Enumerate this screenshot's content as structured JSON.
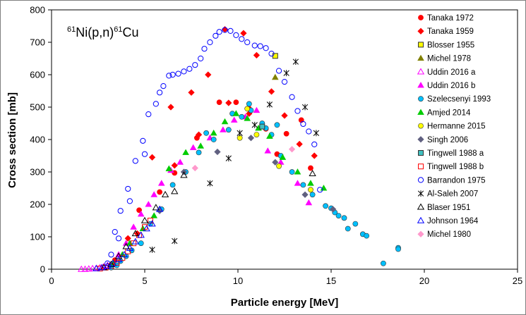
{
  "chart_data": {
    "type": "scatter",
    "title": "61Ni(p,n)61Cu",
    "title_parts": {
      "a1": "61",
      "e1": "Ni(p,n)",
      "a2": "61",
      "e2": "Cu"
    },
    "xlabel": "Particle energy [MeV]",
    "ylabel": "Cross section [mb]",
    "xlim": [
      0,
      25
    ],
    "ylim": [
      0,
      800
    ],
    "x_ticks": [
      0,
      5,
      10,
      15,
      20,
      25
    ],
    "y_ticks": [
      0,
      100,
      200,
      300,
      400,
      500,
      600,
      700,
      800
    ],
    "grid": false,
    "legend_position": "right",
    "series": [
      {
        "name": "Tanaka 1972",
        "marker": "circle",
        "color": "#ff0000",
        "filled": true,
        "x": [
          3.4,
          4.7,
          5.8,
          6.6,
          7.8,
          9.0,
          9.9,
          10.6,
          11.5,
          12.1,
          12.6,
          13.4,
          13.9
        ],
        "y": [
          28,
          182,
          238,
          297,
          405,
          515,
          515,
          495,
          433,
          355,
          418,
          460,
          312
        ]
      },
      {
        "name": "Tanaka 1959",
        "marker": "diamond",
        "color": "#ff0000",
        "filled": true,
        "x": [
          4.1,
          5.4,
          6.4,
          7.5,
          8.4,
          9.3,
          10.3,
          11.0,
          11.8,
          12.5,
          13.3,
          14.1,
          4.6,
          6.6,
          7.9,
          9.5,
          10.6
        ],
        "y": [
          95,
          345,
          500,
          545,
          600,
          740,
          728,
          660,
          548,
          474,
          386,
          350,
          110,
          320,
          415,
          513,
          480
        ]
      },
      {
        "name": "Blosser 1955",
        "marker": "square",
        "color": "#ffff00",
        "filled": true,
        "x": [
          12.0
        ],
        "y": [
          658
        ]
      },
      {
        "name": "Michel 1978",
        "marker": "triangle",
        "color": "#808000",
        "filled": true,
        "x": [
          12.0
        ],
        "y": [
          592
        ]
      },
      {
        "name": "Uddin 2016 a",
        "marker": "triangle",
        "color": "#ff00ff",
        "filled": false,
        "x": [
          1.6,
          1.8,
          2.0,
          2.2,
          2.4,
          2.6,
          2.8,
          3.0,
          3.3
        ],
        "y": [
          0,
          0,
          1,
          2,
          3,
          5,
          8,
          12,
          18
        ]
      },
      {
        "name": "Uddin 2016 b",
        "marker": "triangle",
        "color": "#ff00ff",
        "filled": true,
        "x": [
          3.6,
          4.0,
          4.4,
          4.8,
          5.2,
          5.5,
          5.9,
          6.4,
          6.9,
          7.6,
          8.5,
          9.2,
          9.8,
          10.4,
          11.0,
          11.6,
          12.3,
          13.2,
          13.8
        ],
        "y": [
          45,
          80,
          130,
          170,
          200,
          230,
          265,
          305,
          330,
          375,
          405,
          430,
          460,
          470,
          490,
          365,
          330,
          265,
          205
        ]
      },
      {
        "name": "Szelecsenyi 1993",
        "marker": "circle",
        "color": "#00c0ff",
        "filled": true,
        "x": [
          3.2,
          3.5,
          3.7,
          4.0,
          4.3,
          4.8,
          5.3,
          5.9,
          6.5,
          7.2,
          7.9,
          8.7,
          9.5,
          10.2,
          10.7,
          11.3,
          11.8,
          12.3,
          12.9,
          13.5,
          14.0,
          14.7,
          15.2,
          15.7,
          16.3,
          16.7,
          17.8,
          18.6,
          15.0,
          15.4,
          15.9,
          16.9,
          18.6,
          12.1,
          11.5,
          10.6,
          9.7,
          8.3
        ],
        "y": [
          5,
          12,
          25,
          40,
          58,
          80,
          140,
          185,
          260,
          300,
          360,
          400,
          430,
          470,
          490,
          450,
          415,
          350,
          300,
          260,
          230,
          195,
          175,
          158,
          140,
          108,
          18,
          66,
          188,
          165,
          125,
          103,
          62,
          445,
          435,
          510,
          480,
          420
        ]
      },
      {
        "name": "Amjed 2014",
        "marker": "triangle",
        "color": "#00cc00",
        "filled": true,
        "x": [
          3.3,
          3.8,
          4.2,
          4.9,
          5.5,
          6.3,
          7.2,
          8.0,
          8.7,
          9.3,
          9.9,
          10.5,
          11.1,
          11.7,
          12.4,
          13.2,
          13.9,
          14.6
        ],
        "y": [
          20,
          45,
          80,
          125,
          165,
          310,
          360,
          380,
          420,
          455,
          480,
          465,
          435,
          410,
          345,
          300,
          265,
          250
        ]
      },
      {
        "name": "Hermanne 2015",
        "marker": "circle",
        "color": "#ffff00",
        "filled": true,
        "x": [
          10.1,
          10.5,
          12.2,
          13.9,
          11.0
        ],
        "y": [
          405,
          495,
          318,
          245,
          415
        ]
      },
      {
        "name": "Singh 2006",
        "marker": "diamond",
        "color": "#606080",
        "filled": true,
        "x": [
          5.8,
          7.1,
          8.9,
          10.7,
          12.0,
          13.6,
          15.1
        ],
        "y": [
          180,
          300,
          362,
          405,
          330,
          230,
          185
        ]
      },
      {
        "name": "Tingwell 1988 a",
        "marker": "square",
        "color": "#40c0c0",
        "filled": true,
        "x": [
          11.3
        ],
        "y": [
          440
        ]
      },
      {
        "name": "Tingwell 1988 b",
        "marker": "square",
        "color": "#ff0000",
        "filled": false,
        "x": [
          2.6,
          2.9,
          3.2,
          3.5,
          3.8,
          4.1,
          4.4,
          4.7,
          5.0,
          5.3
        ],
        "y": [
          2,
          5,
          10,
          20,
          35,
          55,
          80,
          105,
          130,
          150
        ]
      },
      {
        "name": "Barrandon 1975",
        "marker": "circle",
        "color": "#0000ff",
        "filled": false,
        "x": [
          3.0,
          3.2,
          3.4,
          3.7,
          4.1,
          4.5,
          4.9,
          5.2,
          5.6,
          5.8,
          6.0,
          6.3,
          6.5,
          6.8,
          7.1,
          7.4,
          7.7,
          8.0,
          8.2,
          8.5,
          8.8,
          9.0,
          9.3,
          9.6,
          9.9,
          10.2,
          10.5,
          10.9,
          11.2,
          11.5,
          11.8,
          12.2,
          12.5,
          12.9,
          13.2,
          13.5,
          13.8,
          14.1,
          14.4,
          3.6,
          4.2,
          5.0
        ],
        "y": [
          18,
          45,
          115,
          180,
          248,
          334,
          396,
          478,
          510,
          545,
          565,
          597,
          600,
          603,
          610,
          618,
          630,
          650,
          680,
          700,
          720,
          732,
          738,
          735,
          722,
          710,
          700,
          690,
          688,
          682,
          665,
          612,
          578,
          531,
          488,
          448,
          425,
          385,
          245,
          95,
          210,
          355
        ]
      },
      {
        "name": "Al-Saleh 2007",
        "marker": "asterisk",
        "color": "#000000",
        "filled": false,
        "x": [
          5.4,
          6.6,
          8.5,
          9.5,
          10.1,
          10.9,
          11.7,
          12.6,
          13.1,
          13.6,
          14.2
        ],
        "y": [
          60,
          87,
          265,
          342,
          420,
          445,
          508,
          605,
          640,
          500,
          420
        ]
      },
      {
        "name": "Blaser 1951",
        "marker": "triangle",
        "color": "#000000",
        "filled": false,
        "x": [
          2.8,
          3.2,
          3.6,
          4.0,
          4.5,
          5.0,
          5.6,
          6.1,
          6.6,
          7.1,
          14.0
        ],
        "y": [
          5,
          15,
          40,
          70,
          110,
          150,
          190,
          230,
          240,
          290,
          295
        ]
      },
      {
        "name": "Johnson 1964",
        "marker": "triangle",
        "color": "#0000ff",
        "filled": false,
        "x": [
          2.4,
          2.7,
          3.0,
          3.3,
          3.6,
          3.9,
          4.2,
          4.5,
          4.8,
          5.1,
          5.4,
          5.8
        ],
        "y": [
          2,
          5,
          10,
          18,
          30,
          45,
          65,
          85,
          105,
          125,
          140,
          185
        ]
      },
      {
        "name": "Michel 1980",
        "marker": "diamond",
        "color": "#ff99cc",
        "filled": true,
        "x": [
          7.7,
          12.9
        ],
        "y": [
          312,
          370
        ]
      }
    ]
  }
}
